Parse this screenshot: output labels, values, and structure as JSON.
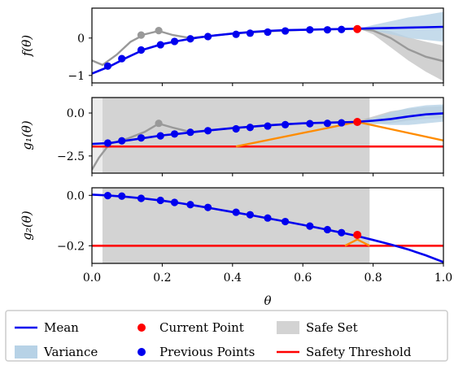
{
  "chart_data": {
    "type": "line",
    "xlabel": "θ",
    "xlim": [
      0,
      1
    ],
    "x_ticks": [
      "0.0",
      "0.2",
      "0.4",
      "0.6",
      "0.8",
      "1.0"
    ],
    "current_theta": 0.755,
    "safe_set_range": [
      0.03,
      0.79
    ],
    "colors": {
      "mean": "#0000ee",
      "variance": "#b7d2e6",
      "current": "#ff0000",
      "previous": "#0000ee",
      "safe_set": "#d3d3d3",
      "threshold": "#ff0000",
      "acquisition": "#ff8c00",
      "grey_model": "#999999"
    },
    "legend": {
      "placement": "bottom",
      "entries": [
        "Mean",
        "Current Point",
        "Safe Set",
        "Variance",
        "Previous Points",
        "Safety Threshold"
      ]
    },
    "panels": [
      {
        "ylabel": "f(θ)",
        "ylim": [
          -1.2,
          0.8
        ],
        "y_ticks": [
          {
            "v": 0,
            "label": "0"
          },
          {
            "v": -1,
            "label": "−1"
          }
        ],
        "mean": [
          [
            0,
            -0.95
          ],
          [
            0.05,
            -0.76
          ],
          [
            0.1,
            -0.52
          ],
          [
            0.15,
            -0.3
          ],
          [
            0.2,
            -0.16
          ],
          [
            0.25,
            -0.07
          ],
          [
            0.3,
            0.01
          ],
          [
            0.35,
            0.07
          ],
          [
            0.4,
            0.12
          ],
          [
            0.45,
            0.16
          ],
          [
            0.5,
            0.19
          ],
          [
            0.55,
            0.21
          ],
          [
            0.6,
            0.22
          ],
          [
            0.65,
            0.23
          ],
          [
            0.7,
            0.24
          ],
          [
            0.75,
            0.25
          ],
          [
            0.8,
            0.26
          ],
          [
            0.85,
            0.27
          ],
          [
            0.9,
            0.28
          ],
          [
            0.95,
            0.29
          ],
          [
            1.0,
            0.3
          ]
        ],
        "points": [
          [
            0.045,
            -0.75
          ],
          [
            0.085,
            -0.55
          ],
          [
            0.14,
            -0.32
          ],
          [
            0.195,
            -0.18
          ],
          [
            0.235,
            -0.09
          ],
          [
            0.28,
            -0.02
          ],
          [
            0.33,
            0.04
          ],
          [
            0.41,
            0.1
          ],
          [
            0.45,
            0.13
          ],
          [
            0.5,
            0.16
          ],
          [
            0.55,
            0.19
          ],
          [
            0.62,
            0.22
          ],
          [
            0.67,
            0.22
          ],
          [
            0.71,
            0.23
          ]
        ],
        "current": [
          0.755,
          0.24
        ],
        "grey_points": [
          [
            0.14,
            0.08
          ],
          [
            0.19,
            0.2
          ]
        ],
        "grey_curve": [
          [
            0,
            -0.6
          ],
          [
            0.03,
            -0.72
          ],
          [
            0.07,
            -0.45
          ],
          [
            0.11,
            -0.1
          ],
          [
            0.15,
            0.1
          ],
          [
            0.19,
            0.19
          ],
          [
            0.23,
            0.08
          ],
          [
            0.28,
            0.0
          ],
          [
            0.33,
            0.05
          ],
          [
            0.4,
            0.12
          ],
          [
            0.5,
            0.18
          ],
          [
            0.6,
            0.22
          ],
          [
            0.7,
            0.24
          ],
          [
            0.76,
            0.25
          ],
          [
            0.8,
            0.2
          ],
          [
            0.85,
            0.0
          ],
          [
            0.9,
            -0.3
          ],
          [
            0.95,
            -0.5
          ],
          [
            1.0,
            -0.62
          ]
        ],
        "variance_upper": [
          [
            0.76,
            0.25
          ],
          [
            0.8,
            0.35
          ],
          [
            0.85,
            0.45
          ],
          [
            0.9,
            0.55
          ],
          [
            0.95,
            0.62
          ],
          [
            1.0,
            0.7
          ]
        ],
        "variance_lower": [
          [
            0.76,
            0.25
          ],
          [
            0.8,
            0.2
          ],
          [
            0.85,
            0.1
          ],
          [
            0.9,
            0.0
          ],
          [
            0.95,
            -0.05
          ],
          [
            1.0,
            -0.1
          ]
        ],
        "grey_band_upper": [
          [
            0.76,
            0.25
          ],
          [
            0.8,
            0.25
          ],
          [
            0.85,
            0.18
          ],
          [
            0.9,
            0.02
          ],
          [
            0.95,
            -0.1
          ],
          [
            1.0,
            -0.2
          ]
        ],
        "grey_band_lower": [
          [
            0.76,
            0.25
          ],
          [
            0.8,
            0.1
          ],
          [
            0.85,
            -0.25
          ],
          [
            0.9,
            -0.6
          ],
          [
            0.95,
            -0.9
          ],
          [
            1.0,
            -1.15
          ]
        ]
      },
      {
        "ylabel": "g₁(θ)",
        "ylim": [
          -3.5,
          0.9
        ],
        "y_ticks": [
          {
            "v": 0,
            "label": "0.0"
          },
          {
            "v": -2.5,
            "label": "−2.5"
          }
        ],
        "threshold": -1.95,
        "mean": [
          [
            0,
            -1.8
          ],
          [
            0.05,
            -1.75
          ],
          [
            0.1,
            -1.6
          ],
          [
            0.15,
            -1.45
          ],
          [
            0.2,
            -1.3
          ],
          [
            0.25,
            -1.2
          ],
          [
            0.3,
            -1.08
          ],
          [
            0.35,
            -0.98
          ],
          [
            0.4,
            -0.88
          ],
          [
            0.45,
            -0.8
          ],
          [
            0.5,
            -0.72
          ],
          [
            0.55,
            -0.65
          ],
          [
            0.6,
            -0.6
          ],
          [
            0.65,
            -0.57
          ],
          [
            0.7,
            -0.55
          ],
          [
            0.75,
            -0.52
          ],
          [
            0.8,
            -0.45
          ],
          [
            0.85,
            -0.35
          ],
          [
            0.9,
            -0.2
          ],
          [
            0.95,
            -0.08
          ],
          [
            1.0,
            -0.02
          ]
        ],
        "points": [
          [
            0.045,
            -1.75
          ],
          [
            0.085,
            -1.62
          ],
          [
            0.14,
            -1.45
          ],
          [
            0.195,
            -1.33
          ],
          [
            0.235,
            -1.22
          ],
          [
            0.28,
            -1.12
          ],
          [
            0.33,
            -1.03
          ],
          [
            0.41,
            -0.92
          ],
          [
            0.45,
            -0.84
          ],
          [
            0.5,
            -0.76
          ],
          [
            0.55,
            -0.68
          ],
          [
            0.62,
            -0.62
          ],
          [
            0.67,
            -0.6
          ],
          [
            0.71,
            -0.57
          ]
        ],
        "current": [
          0.755,
          -0.52
        ],
        "grey_points": [
          [
            0.19,
            -0.6
          ]
        ],
        "grey_curve": [
          [
            0,
            -3.3
          ],
          [
            0.02,
            -2.6
          ],
          [
            0.05,
            -1.8
          ],
          [
            0.1,
            -1.5
          ],
          [
            0.15,
            -1.1
          ],
          [
            0.19,
            -0.62
          ],
          [
            0.23,
            -0.85
          ],
          [
            0.28,
            -1.1
          ],
          [
            0.35,
            -0.98
          ],
          [
            0.45,
            -0.8
          ],
          [
            0.6,
            -0.6
          ],
          [
            0.75,
            -0.52
          ]
        ],
        "acquisition": [
          [
            0.41,
            -1.95
          ],
          [
            0.755,
            -0.52
          ],
          [
            1.0,
            -1.6
          ]
        ],
        "variance_upper": [
          [
            0.75,
            -0.52
          ],
          [
            0.8,
            -0.3
          ],
          [
            0.85,
            0.05
          ],
          [
            0.9,
            0.3
          ],
          [
            0.95,
            0.45
          ],
          [
            1.0,
            0.5
          ]
        ],
        "variance_lower": [
          [
            0.75,
            -0.52
          ],
          [
            0.8,
            -0.6
          ],
          [
            0.85,
            -0.7
          ],
          [
            0.9,
            -0.7
          ],
          [
            0.95,
            -0.6
          ],
          [
            1.0,
            -0.5
          ]
        ],
        "grey_band_upper": [
          [
            0.75,
            -0.52
          ],
          [
            0.8,
            -0.2
          ],
          [
            0.85,
            0.1
          ],
          [
            0.9,
            0.25
          ],
          [
            0.95,
            0.35
          ],
          [
            1.0,
            0.4
          ]
        ],
        "grey_band_lower": [
          [
            0.75,
            -0.52
          ],
          [
            0.8,
            -0.65
          ],
          [
            0.85,
            -0.6
          ],
          [
            0.9,
            -0.45
          ],
          [
            0.95,
            -0.35
          ],
          [
            1.0,
            -0.3
          ]
        ]
      },
      {
        "ylabel": "g₂(θ)",
        "ylim": [
          -0.27,
          0.03
        ],
        "y_ticks": [
          {
            "v": 0,
            "label": "0.0"
          },
          {
            "v": -0.2,
            "label": "−0.2"
          }
        ],
        "threshold": -0.2,
        "mean": [
          [
            0,
            0.003
          ],
          [
            0.05,
            -0.001
          ],
          [
            0.1,
            -0.006
          ],
          [
            0.15,
            -0.013
          ],
          [
            0.2,
            -0.021
          ],
          [
            0.25,
            -0.031
          ],
          [
            0.3,
            -0.042
          ],
          [
            0.35,
            -0.054
          ],
          [
            0.4,
            -0.066
          ],
          [
            0.45,
            -0.078
          ],
          [
            0.5,
            -0.091
          ],
          [
            0.55,
            -0.104
          ],
          [
            0.6,
            -0.117
          ],
          [
            0.65,
            -0.131
          ],
          [
            0.7,
            -0.145
          ],
          [
            0.75,
            -0.16
          ],
          [
            0.8,
            -0.177
          ],
          [
            0.85,
            -0.195
          ],
          [
            0.9,
            -0.215
          ],
          [
            0.95,
            -0.238
          ],
          [
            1.0,
            -0.265
          ]
        ],
        "points": [
          [
            0.045,
            -0.001
          ],
          [
            0.085,
            -0.003
          ],
          [
            0.14,
            -0.012
          ],
          [
            0.195,
            -0.02
          ],
          [
            0.235,
            -0.028
          ],
          [
            0.28,
            -0.037
          ],
          [
            0.33,
            -0.048
          ],
          [
            0.41,
            -0.067
          ],
          [
            0.45,
            -0.077
          ],
          [
            0.5,
            -0.09
          ],
          [
            0.55,
            -0.104
          ],
          [
            0.62,
            -0.122
          ],
          [
            0.67,
            -0.136
          ],
          [
            0.71,
            -0.148
          ]
        ],
        "current": [
          0.755,
          -0.157
        ],
        "acquisition": [
          [
            0.72,
            -0.2
          ],
          [
            0.755,
            -0.175
          ],
          [
            0.79,
            -0.2
          ]
        ]
      }
    ]
  }
}
